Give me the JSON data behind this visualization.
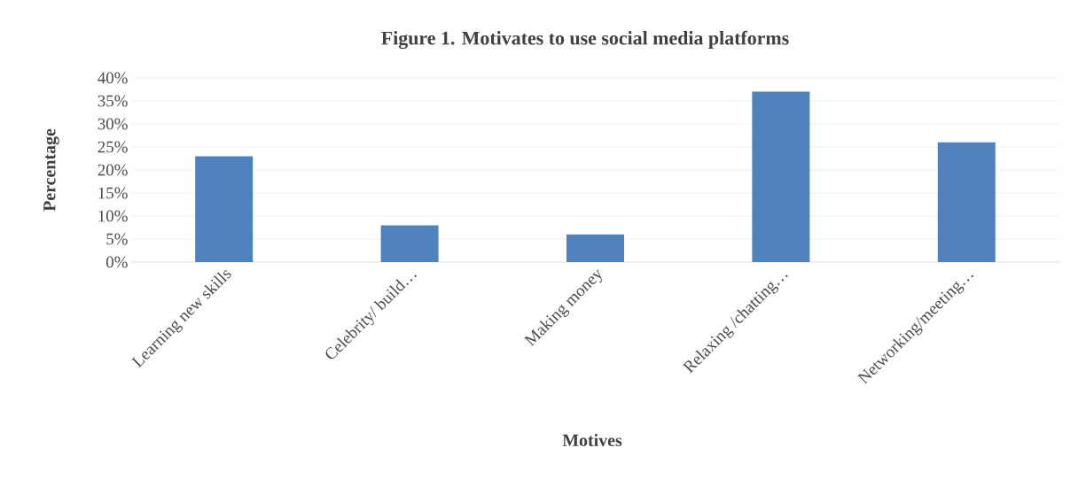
{
  "chart_data": {
    "type": "bar",
    "title": "Figure 1. Motivates to use social media platforms",
    "xlabel": "Motives",
    "ylabel": "Percentage",
    "categories": [
      "Learning new skills",
      "Celebrity/ build…",
      "Making money",
      "Relaxing /chatting…",
      "Networking/meeting…"
    ],
    "values": [
      23,
      8,
      6,
      37,
      26
    ],
    "color": "#4f81bd",
    "ylim": [
      0,
      40
    ],
    "yticks": [
      {
        "value": 0,
        "label": "0%"
      },
      {
        "value": 5,
        "label": "5%"
      },
      {
        "value": 10,
        "label": "10%"
      },
      {
        "value": 15,
        "label": "15%"
      },
      {
        "value": 20,
        "label": "20%"
      },
      {
        "value": 25,
        "label": "25%"
      },
      {
        "value": 30,
        "label": "30%"
      },
      {
        "value": 35,
        "label": "35%"
      },
      {
        "value": 40,
        "label": "40%"
      }
    ],
    "grid": "y"
  }
}
